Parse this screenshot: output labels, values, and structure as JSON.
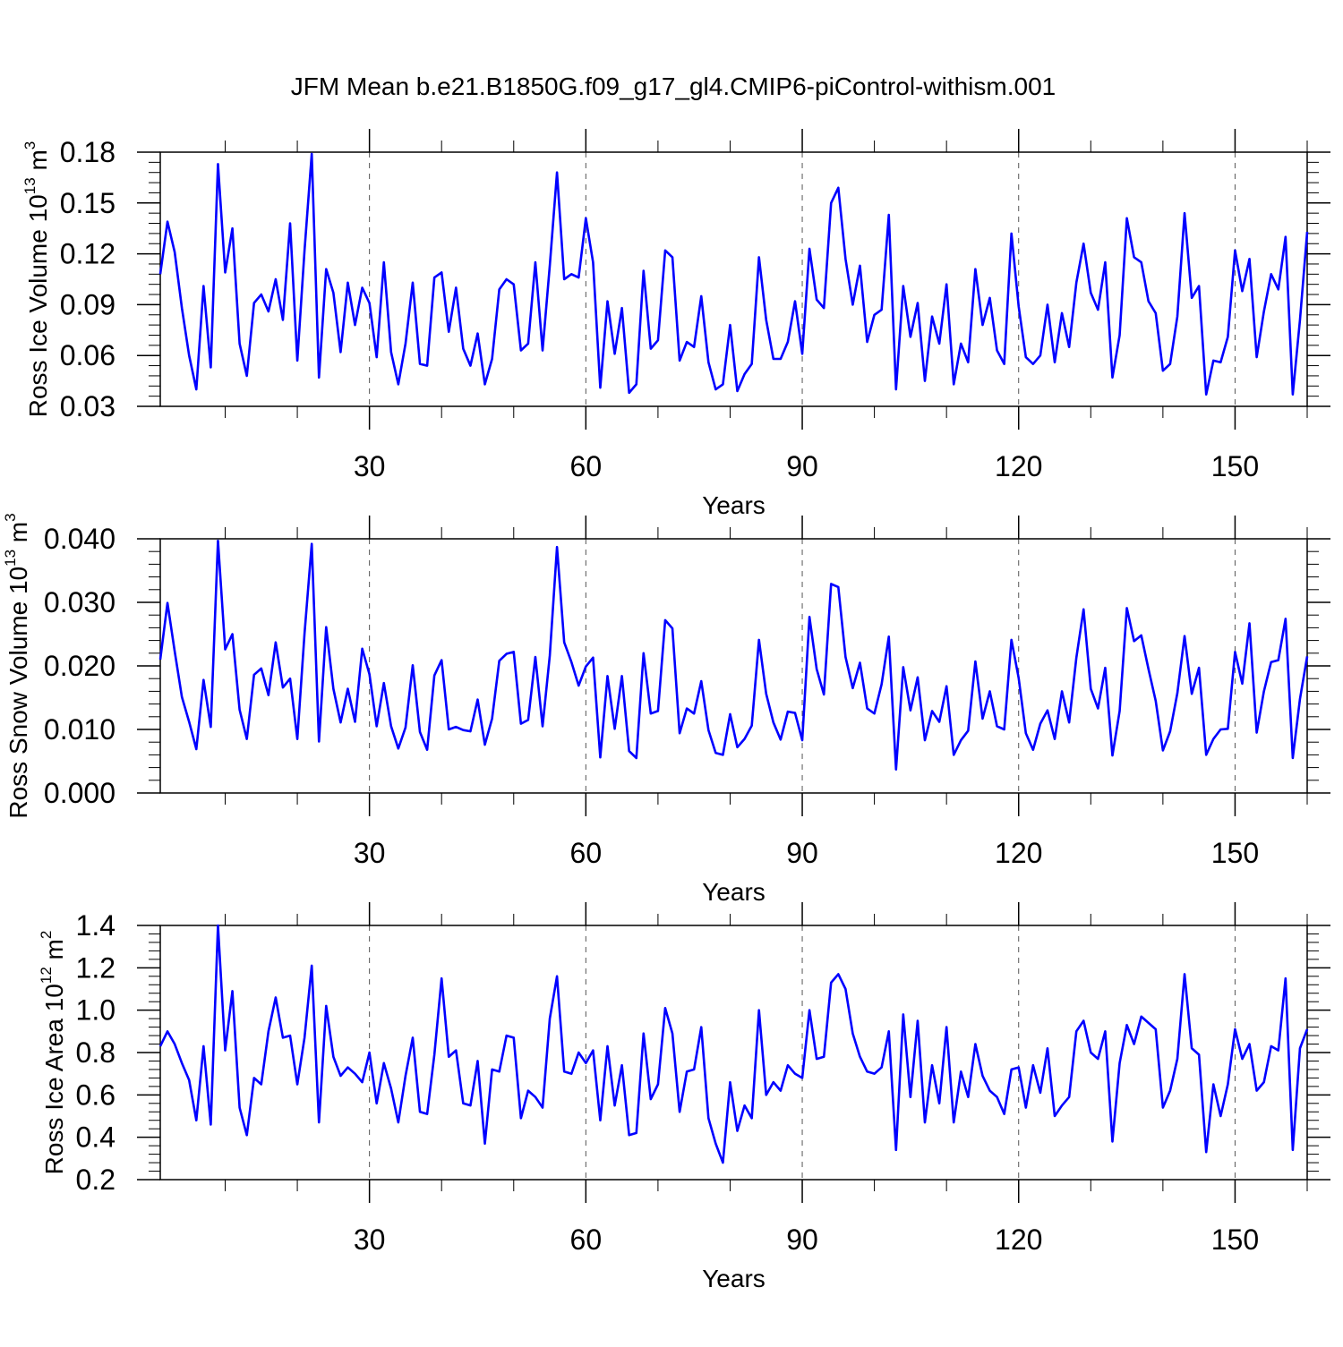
{
  "title": "JFM Mean b.e21.B1850G.f09_g17_gl4.CMIP6-piControl-withism.001",
  "colors": {
    "line": "#0000ff",
    "axis": "#000000",
    "grid": "#555555"
  },
  "chart_data": [
    {
      "type": "line",
      "ylabel_main": "Ross Ice Volume 10",
      "ylabel_exp": "13",
      "ylabel_unit": " m",
      "ylabel_unit_exp": "3",
      "xlabel": "Years",
      "xlim": [
        1,
        160
      ],
      "ylim": [
        0.03,
        0.18
      ],
      "yticks": [
        0.03,
        0.06,
        0.09,
        0.12,
        0.15,
        0.18
      ],
      "ytick_labels": [
        "0.03",
        "0.06",
        "0.09",
        "0.12",
        "0.15",
        "0.18"
      ],
      "xticks": [
        30,
        60,
        90,
        120,
        150
      ],
      "xtick_labels": [
        "30",
        "60",
        "90",
        "120",
        "150"
      ],
      "grid_x": [
        30,
        60,
        90,
        120,
        150
      ],
      "series": [
        {
          "name": "Ross Ice Volume",
          "values": [
            0.108,
            0.139,
            0.121,
            0.088,
            0.06,
            0.04,
            0.101,
            0.053,
            0.173,
            0.109,
            0.135,
            0.067,
            0.048,
            0.091,
            0.096,
            0.086,
            0.105,
            0.081,
            0.138,
            0.057,
            0.122,
            0.179,
            0.047,
            0.111,
            0.097,
            0.062,
            0.103,
            0.078,
            0.1,
            0.091,
            0.059,
            0.115,
            0.062,
            0.043,
            0.067,
            0.103,
            0.055,
            0.054,
            0.106,
            0.109,
            0.074,
            0.1,
            0.064,
            0.054,
            0.073,
            0.043,
            0.058,
            0.099,
            0.105,
            0.102,
            0.063,
            0.067,
            0.115,
            0.063,
            0.113,
            0.168,
            0.105,
            0.108,
            0.106,
            0.141,
            0.115,
            0.041,
            0.092,
            0.061,
            0.088,
            0.038,
            0.043,
            0.11,
            0.064,
            0.069,
            0.122,
            0.118,
            0.057,
            0.068,
            0.065,
            0.095,
            0.056,
            0.04,
            0.043,
            0.078,
            0.039,
            0.049,
            0.055,
            0.118,
            0.081,
            0.058,
            0.058,
            0.068,
            0.092,
            0.061,
            0.123,
            0.093,
            0.088,
            0.15,
            0.159,
            0.117,
            0.09,
            0.113,
            0.068,
            0.084,
            0.087,
            0.143,
            0.04,
            0.101,
            0.071,
            0.091,
            0.045,
            0.083,
            0.067,
            0.102,
            0.043,
            0.067,
            0.056,
            0.111,
            0.078,
            0.094,
            0.063,
            0.055,
            0.132,
            0.089,
            0.059,
            0.055,
            0.06,
            0.09,
            0.056,
            0.085,
            0.065,
            0.103,
            0.126,
            0.097,
            0.087,
            0.115,
            0.047,
            0.072,
            0.141,
            0.118,
            0.115,
            0.092,
            0.085,
            0.051,
            0.055,
            0.083,
            0.144,
            0.094,
            0.101,
            0.037,
            0.057,
            0.056,
            0.071,
            0.122,
            0.098,
            0.117,
            0.059,
            0.086,
            0.108,
            0.099,
            0.13,
            0.037,
            0.081,
            0.133
          ]
        }
      ]
    },
    {
      "type": "line",
      "ylabel_main": "Ross Snow Volume 10",
      "ylabel_exp": "13",
      "ylabel_unit": " m",
      "ylabel_unit_exp": "3",
      "xlabel": "Years",
      "xlim": [
        1,
        160
      ],
      "ylim": [
        0.0,
        0.04
      ],
      "yticks": [
        0.0,
        0.01,
        0.02,
        0.03,
        0.04
      ],
      "ytick_labels": [
        "0.000",
        "0.010",
        "0.020",
        "0.030",
        "0.040"
      ],
      "xticks": [
        30,
        60,
        90,
        120,
        150
      ],
      "xtick_labels": [
        "30",
        "60",
        "90",
        "120",
        "150"
      ],
      "grid_x": [
        30,
        60,
        90,
        120,
        150
      ],
      "series": [
        {
          "name": "Ross Snow Volume",
          "values": [
            0.021,
            0.0299,
            0.0223,
            0.0151,
            0.0112,
            0.0069,
            0.0178,
            0.0104,
            0.0397,
            0.0226,
            0.025,
            0.0131,
            0.0085,
            0.0186,
            0.0196,
            0.0154,
            0.0237,
            0.0166,
            0.018,
            0.0085,
            0.0251,
            0.0392,
            0.0081,
            0.0261,
            0.0164,
            0.0111,
            0.0164,
            0.0112,
            0.0227,
            0.0187,
            0.0105,
            0.0173,
            0.0105,
            0.007,
            0.0103,
            0.0201,
            0.0096,
            0.0068,
            0.0185,
            0.0209,
            0.01,
            0.0104,
            0.0099,
            0.0097,
            0.0147,
            0.0076,
            0.0117,
            0.0208,
            0.0219,
            0.0222,
            0.0109,
            0.0115,
            0.0214,
            0.0105,
            0.0216,
            0.0387,
            0.0237,
            0.0206,
            0.0169,
            0.0199,
            0.0213,
            0.0056,
            0.0184,
            0.0101,
            0.0184,
            0.0066,
            0.0055,
            0.022,
            0.0125,
            0.0129,
            0.0272,
            0.0259,
            0.0094,
            0.0133,
            0.0125,
            0.0176,
            0.0099,
            0.0063,
            0.006,
            0.0124,
            0.0072,
            0.0085,
            0.0106,
            0.0241,
            0.0156,
            0.0111,
            0.0084,
            0.0128,
            0.0126,
            0.0083,
            0.0277,
            0.0195,
            0.0155,
            0.0329,
            0.0324,
            0.0214,
            0.0165,
            0.0205,
            0.0133,
            0.0125,
            0.0171,
            0.0246,
            0.0037,
            0.0198,
            0.013,
            0.0182,
            0.0083,
            0.0129,
            0.0112,
            0.0168,
            0.006,
            0.0083,
            0.0098,
            0.0207,
            0.0117,
            0.016,
            0.0105,
            0.01,
            0.0241,
            0.0181,
            0.0094,
            0.0068,
            0.0109,
            0.013,
            0.0085,
            0.016,
            0.0111,
            0.0213,
            0.0289,
            0.0164,
            0.0133,
            0.0197,
            0.0059,
            0.0129,
            0.0291,
            0.0239,
            0.0248,
            0.0195,
            0.0145,
            0.0067,
            0.0097,
            0.0157,
            0.0247,
            0.0156,
            0.0197,
            0.006,
            0.0085,
            0.01,
            0.0101,
            0.0222,
            0.0172,
            0.0267,
            0.0095,
            0.016,
            0.0206,
            0.0209,
            0.0274,
            0.0055,
            0.0148,
            0.0215
          ]
        }
      ]
    },
    {
      "type": "line",
      "ylabel_main": "Ross Ice Area 10",
      "ylabel_exp": "12",
      "ylabel_unit": " m",
      "ylabel_unit_exp": "2",
      "xlabel": "Years",
      "xlim": [
        1,
        160
      ],
      "ylim": [
        0.2,
        1.4
      ],
      "yticks": [
        0.2,
        0.4,
        0.6,
        0.8,
        1.0,
        1.2,
        1.4
      ],
      "ytick_labels": [
        "0.2",
        "0.4",
        "0.6",
        "0.8",
        "1.0",
        "1.2",
        "1.4"
      ],
      "xticks": [
        30,
        60,
        90,
        120,
        150
      ],
      "xtick_labels": [
        "30",
        "60",
        "90",
        "120",
        "150"
      ],
      "grid_x": [
        30,
        60,
        90,
        120,
        150
      ],
      "series": [
        {
          "name": "Ross Ice Area",
          "values": [
            0.83,
            0.9,
            0.84,
            0.75,
            0.67,
            0.48,
            0.83,
            0.46,
            1.4,
            0.81,
            1.09,
            0.54,
            0.41,
            0.68,
            0.65,
            0.9,
            1.06,
            0.87,
            0.88,
            0.65,
            0.87,
            1.21,
            0.47,
            1.02,
            0.78,
            0.69,
            0.73,
            0.7,
            0.66,
            0.8,
            0.56,
            0.75,
            0.63,
            0.47,
            0.69,
            0.87,
            0.52,
            0.51,
            0.79,
            1.15,
            0.78,
            0.81,
            0.56,
            0.55,
            0.76,
            0.37,
            0.72,
            0.71,
            0.88,
            0.87,
            0.49,
            0.62,
            0.59,
            0.54,
            0.96,
            1.16,
            0.71,
            0.7,
            0.8,
            0.75,
            0.81,
            0.48,
            0.83,
            0.55,
            0.74,
            0.41,
            0.42,
            0.89,
            0.58,
            0.65,
            1.01,
            0.89,
            0.52,
            0.71,
            0.72,
            0.92,
            0.49,
            0.37,
            0.28,
            0.66,
            0.43,
            0.55,
            0.49,
            1.0,
            0.6,
            0.66,
            0.62,
            0.74,
            0.7,
            0.68,
            1.0,
            0.77,
            0.78,
            1.13,
            1.17,
            1.1,
            0.89,
            0.78,
            0.71,
            0.7,
            0.73,
            0.9,
            0.34,
            0.98,
            0.59,
            0.95,
            0.47,
            0.74,
            0.56,
            0.92,
            0.47,
            0.71,
            0.59,
            0.84,
            0.69,
            0.62,
            0.59,
            0.51,
            0.72,
            0.73,
            0.54,
            0.74,
            0.61,
            0.82,
            0.5,
            0.55,
            0.59,
            0.9,
            0.95,
            0.8,
            0.77,
            0.9,
            0.38,
            0.75,
            0.93,
            0.84,
            0.97,
            0.94,
            0.91,
            0.54,
            0.62,
            0.77,
            1.17,
            0.82,
            0.79,
            0.33,
            0.65,
            0.5,
            0.65,
            0.91,
            0.77,
            0.84,
            0.62,
            0.66,
            0.83,
            0.81,
            1.15,
            0.34,
            0.82,
            0.91
          ]
        }
      ]
    }
  ]
}
